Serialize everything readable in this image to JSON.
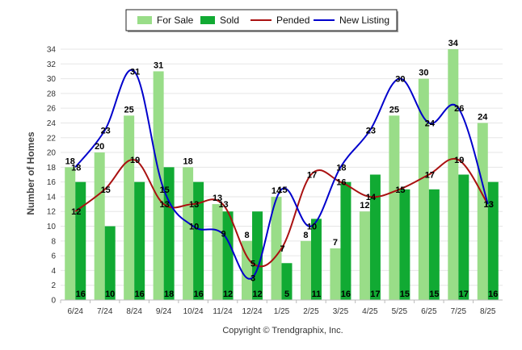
{
  "chart_data": {
    "type": "bar",
    "categories": [
      "6/24",
      "7/24",
      "8/24",
      "9/24",
      "10/24",
      "11/24",
      "12/24",
      "1/25",
      "2/25",
      "3/25",
      "4/25",
      "5/25",
      "6/25",
      "7/25",
      "8/25"
    ],
    "ylabel": "Number of Homes",
    "ylim": [
      0,
      34
    ],
    "yticks": [
      0,
      2,
      4,
      6,
      8,
      10,
      12,
      14,
      16,
      18,
      20,
      22,
      24,
      26,
      28,
      30,
      32,
      34
    ],
    "grid": true,
    "legend_position": "top",
    "series": [
      {
        "name": "For Sale",
        "kind": "bar",
        "color": "#99dd88",
        "values": [
          18,
          20,
          25,
          31,
          18,
          13,
          8,
          14,
          8,
          7,
          12,
          25,
          30,
          34,
          24
        ]
      },
      {
        "name": "Sold",
        "kind": "bar",
        "color": "#11aa33",
        "values": [
          16,
          10,
          16,
          18,
          16,
          12,
          12,
          5,
          11,
          16,
          17,
          15,
          15,
          17,
          16
        ]
      },
      {
        "name": "Pended",
        "kind": "line",
        "color": "#aa1111",
        "values": [
          12,
          15,
          19,
          13,
          13,
          13,
          5,
          7,
          17,
          16,
          14,
          15,
          17,
          19,
          13
        ]
      },
      {
        "name": "New Listing",
        "kind": "line",
        "color": "#0000cc",
        "values": [
          18,
          23,
          31,
          15,
          10,
          9,
          3,
          15,
          10,
          18,
          23,
          30,
          24,
          26,
          13
        ]
      }
    ]
  },
  "footer": "Copyright © Trendgraphix, Inc."
}
